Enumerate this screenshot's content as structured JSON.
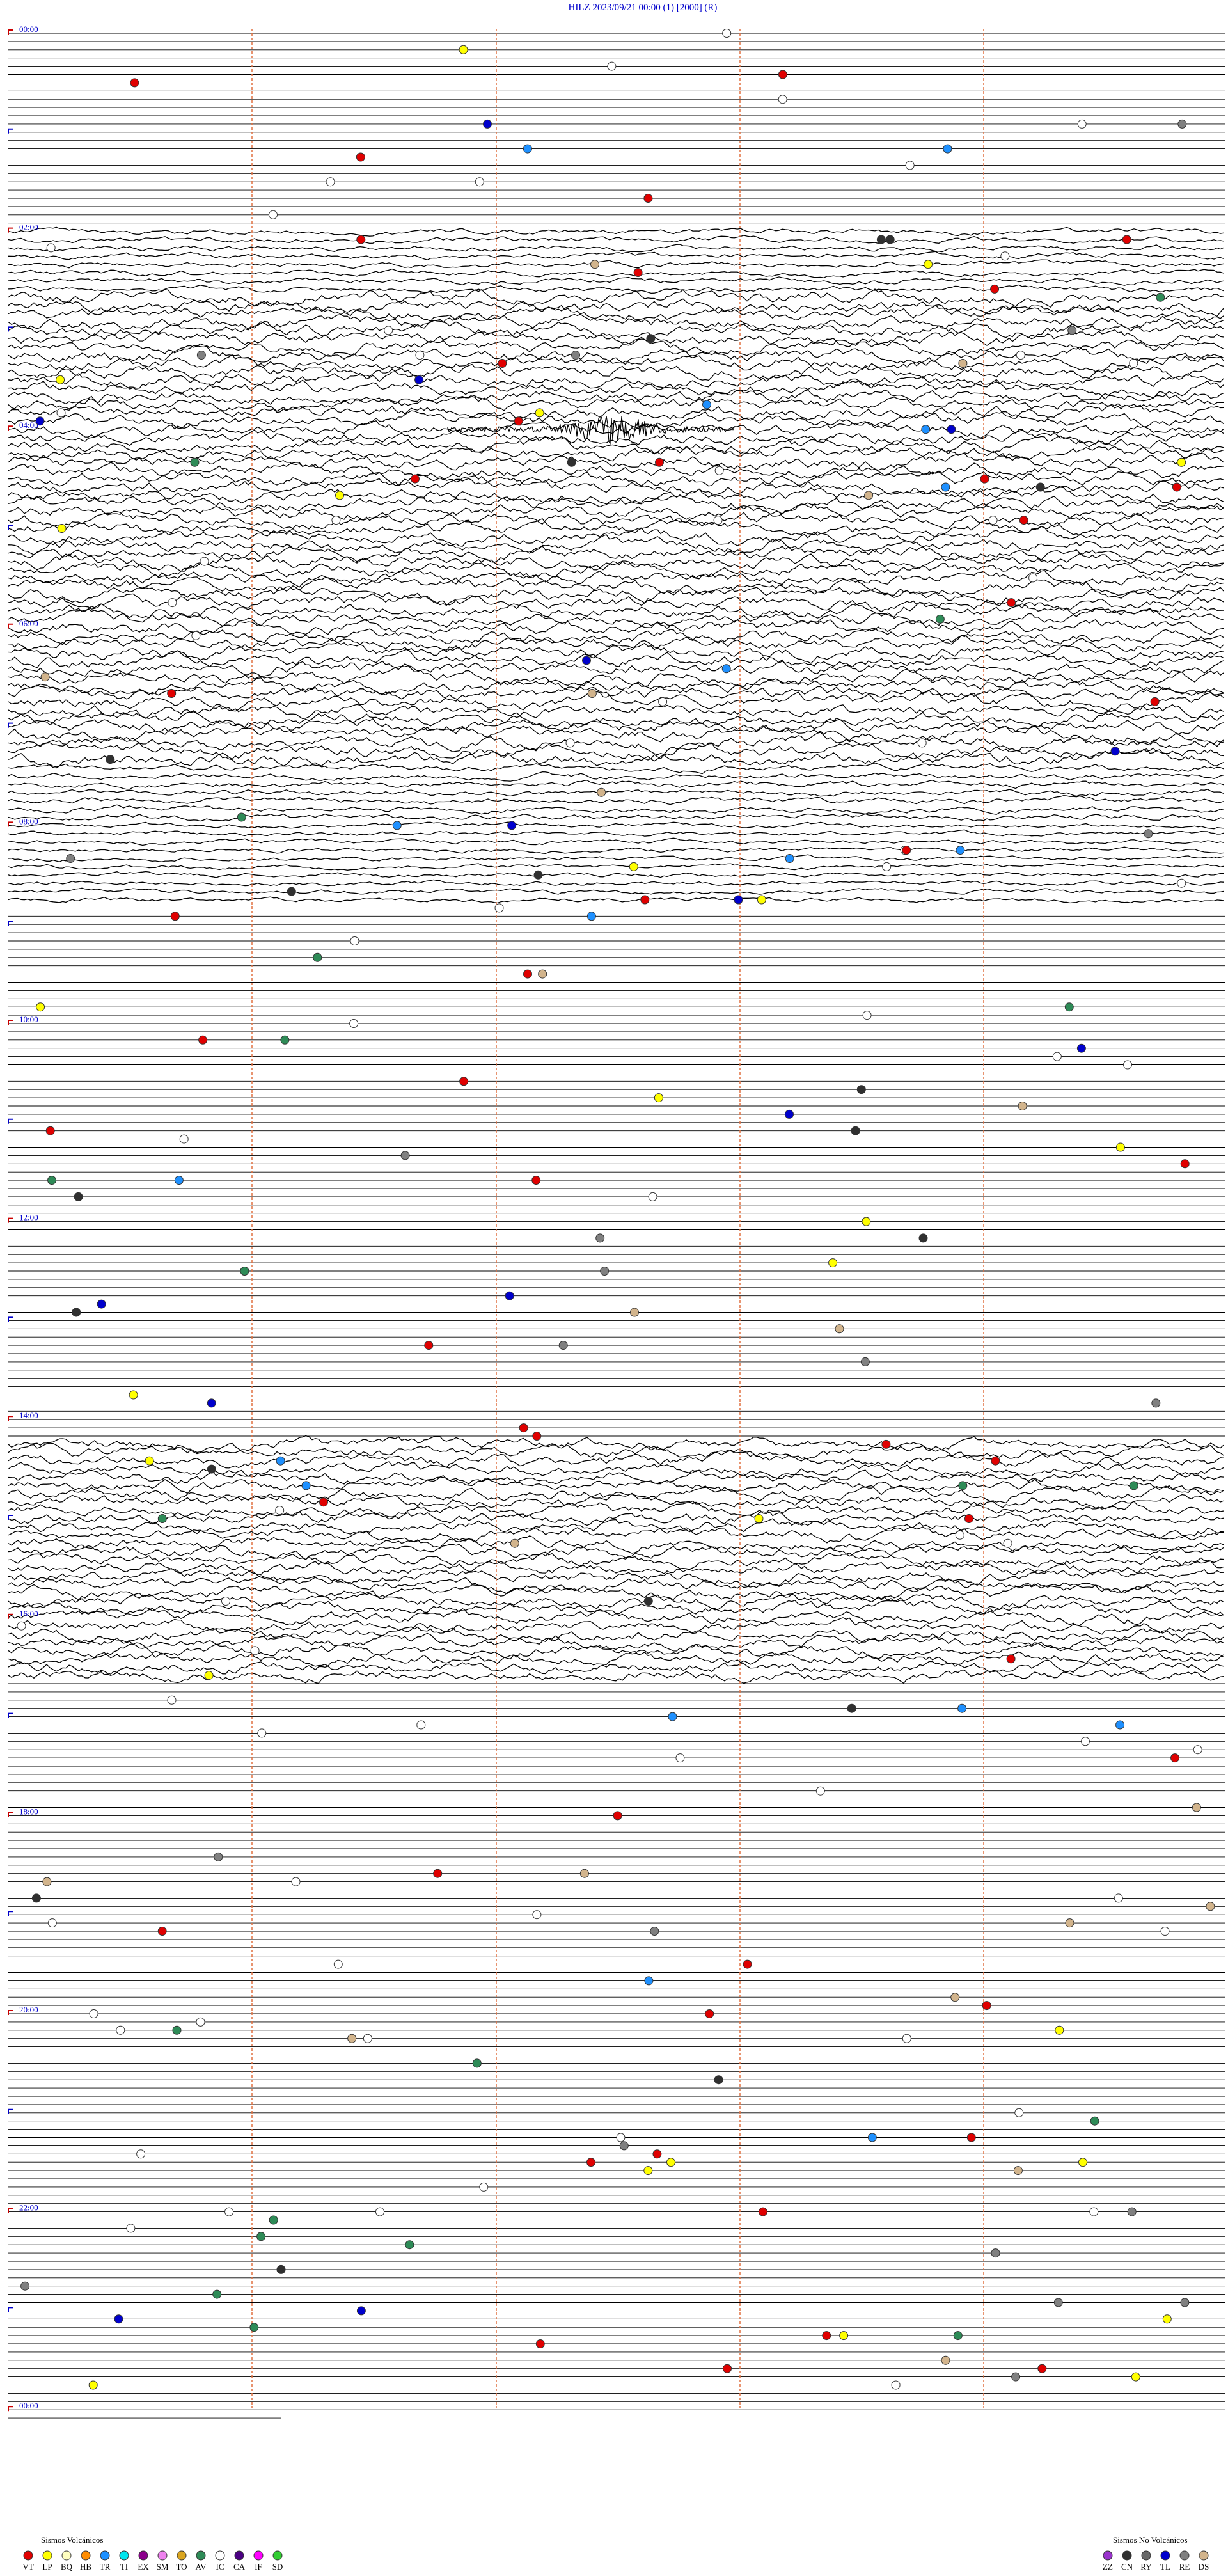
{
  "header": {
    "title": "HILZ    2023/09/21 00:00    (1)    [2000]  (R)"
  },
  "hour_labels": [
    "00:00",
    "02:00",
    "04:00",
    "06:00",
    "08:00",
    "10:00",
    "12:00",
    "14:00",
    "16:00",
    "18:00",
    "20:00",
    "22:00",
    "00:00"
  ],
  "legend_volcanic": {
    "title": "Sismos Volcánicos",
    "items": [
      {
        "label": "VT",
        "color": "#e00000"
      },
      {
        "label": "LP",
        "color": "#ffff00"
      },
      {
        "label": "BQ",
        "color": "#ffffc0"
      },
      {
        "label": "HB",
        "color": "#ff8c00"
      },
      {
        "label": "TR",
        "color": "#1e90ff"
      },
      {
        "label": "TI",
        "color": "#00e5ee"
      },
      {
        "label": "EX",
        "color": "#8b008b"
      },
      {
        "label": "SM",
        "color": "#ee82ee"
      },
      {
        "label": "TO",
        "color": "#daa520"
      },
      {
        "label": "AV",
        "color": "#2e8b57"
      },
      {
        "label": "IC",
        "color": "#ffffff"
      },
      {
        "label": "CA",
        "color": "#4b0082"
      },
      {
        "label": "IF",
        "color": "#ff00ff"
      },
      {
        "label": "SD",
        "color": "#32cd32"
      }
    ]
  },
  "legend_non_volcanic": {
    "title": "Sismos No Volcánicos",
    "items": [
      {
        "label": "ZZ",
        "color": "#9932cc"
      },
      {
        "label": "CN",
        "color": "#303030"
      },
      {
        "label": "RY",
        "color": "#696969"
      },
      {
        "label": "TL",
        "color": "#0000cd"
      },
      {
        "label": "RE",
        "color": "#808080"
      },
      {
        "label": "DS",
        "color": "#d2b48c"
      }
    ]
  }
}
